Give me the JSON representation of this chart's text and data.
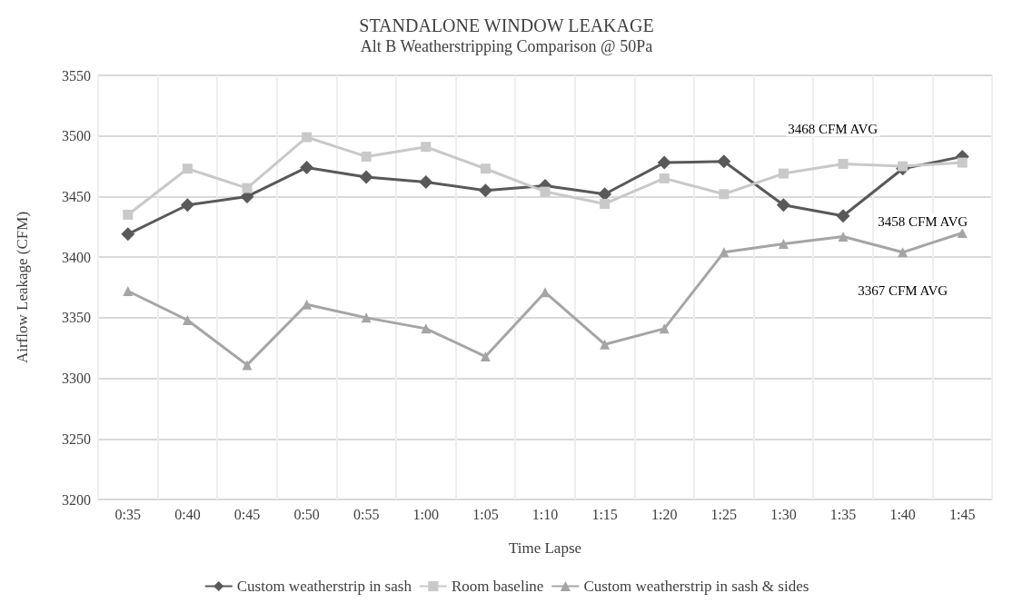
{
  "chart_data": {
    "type": "line",
    "title": "STANDALONE WINDOW LEAKAGE",
    "subtitle": "Alt B Weatherstripping Comparison @ 50Pa",
    "xlabel": "Time Lapse",
    "ylabel": "Airflow Leakage (CFM)",
    "categories": [
      "0:35",
      "0:40",
      "0:45",
      "0:50",
      "0:55",
      "1:00",
      "1:05",
      "1:10",
      "1:15",
      "1:20",
      "1:25",
      "1:30",
      "1:35",
      "1:40",
      "1:45"
    ],
    "series": [
      {
        "name": "Custom weatherstrip in sash",
        "color": "#595959",
        "marker": "diamond",
        "values": [
          3419,
          3443,
          3450,
          3474,
          3466,
          3462,
          3455,
          3459,
          3452,
          3478,
          3479,
          3443,
          3434,
          3473,
          3483
        ]
      },
      {
        "name": "Room baseline",
        "color": "#c9c9c9",
        "marker": "square",
        "values": [
          3435,
          3473,
          3457,
          3499,
          3483,
          3491,
          3473,
          3454,
          3444,
          3465,
          3452,
          3469,
          3477,
          3475,
          3478
        ]
      },
      {
        "name": "Custom weatherstrip in sash & sides",
        "color": "#a5a5a5",
        "marker": "triangle",
        "values": [
          3372,
          3348,
          3311,
          3361,
          3350,
          3341,
          3318,
          3371,
          3328,
          3341,
          3404,
          3411,
          3417,
          3404,
          3420
        ]
      }
    ],
    "annotations": [
      "3468 CFM AVG",
      "3458 CFM AVG",
      "3367 CFM AVG"
    ],
    "ylim": [
      3200,
      3550
    ],
    "yticks": [
      3200,
      3250,
      3300,
      3350,
      3400,
      3450,
      3500,
      3550
    ],
    "grid": true,
    "legend": "bottom",
    "line_style": "solid"
  }
}
